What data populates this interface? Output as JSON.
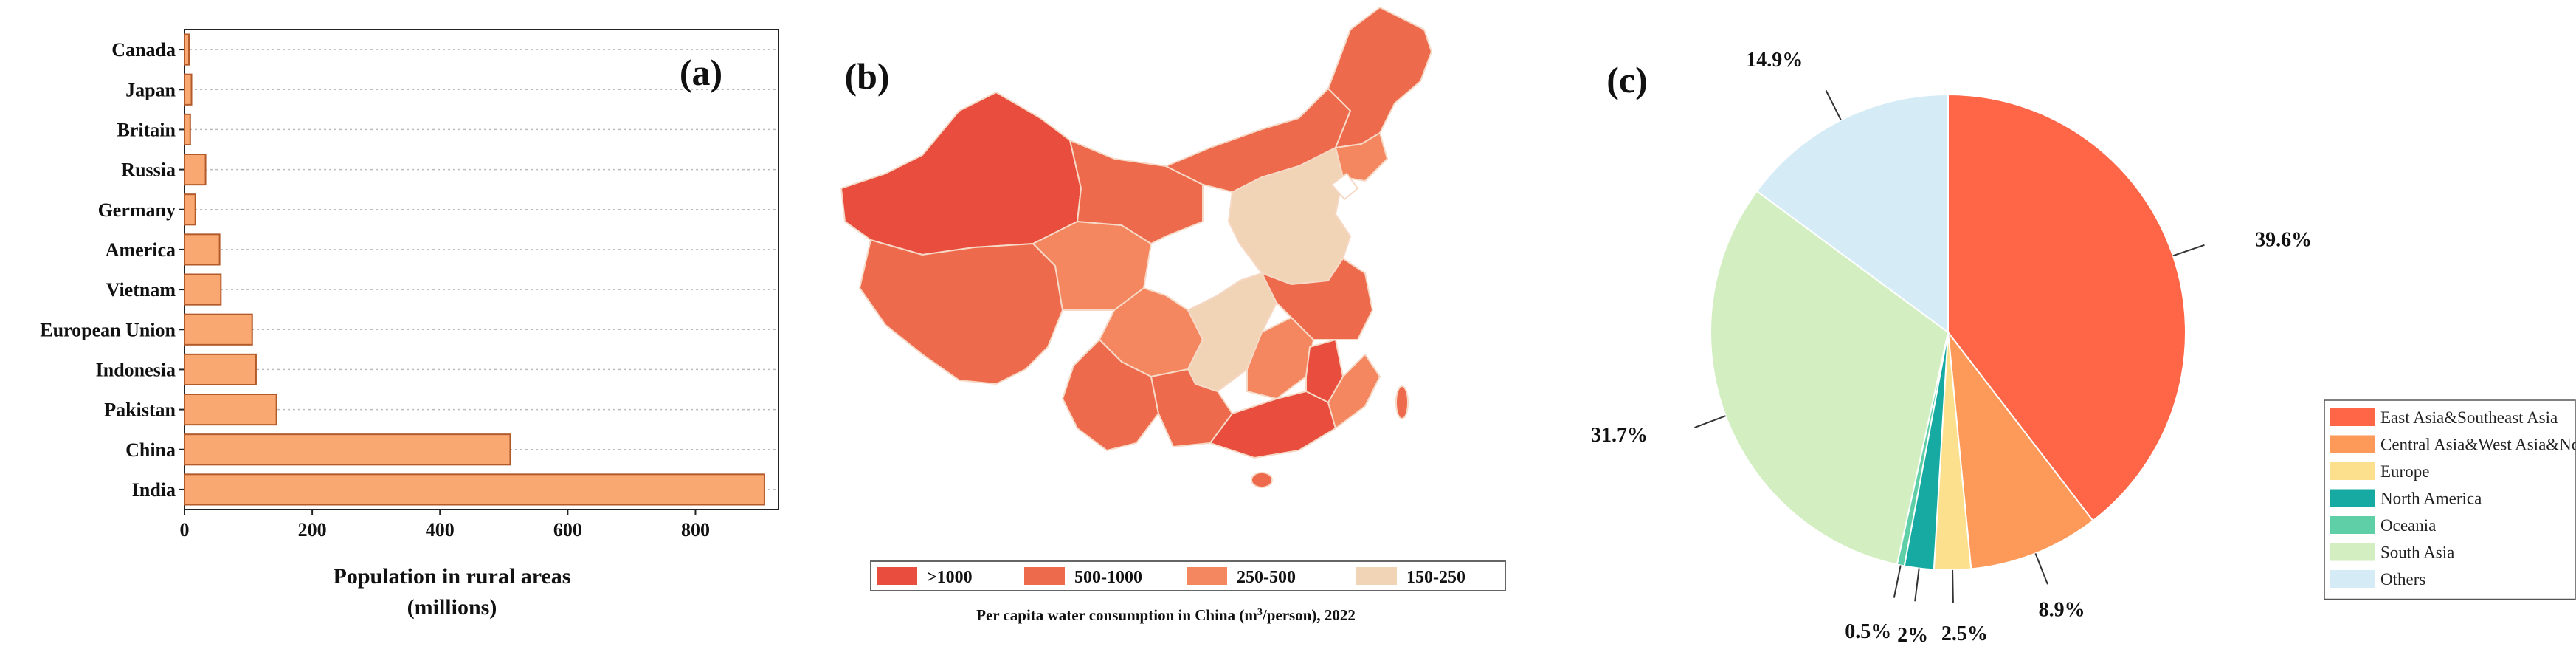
{
  "chart_data": [
    {
      "panel": "(a)",
      "type": "bar",
      "orientation": "horizontal",
      "categories": [
        "India",
        "China",
        "Pakistan",
        "Indonesia",
        "European Union",
        "Vietnam",
        "America",
        "Germany",
        "Russia",
        "Britain",
        "Japan",
        "Canada"
      ],
      "values": [
        908,
        510,
        144,
        112,
        106,
        57,
        55,
        17,
        33,
        9,
        11,
        7
      ],
      "xlabel": "Population in rural areas",
      "xlabel_line2": "(millions)",
      "xlim": [
        0,
        930
      ],
      "xticks": [
        0,
        200,
        400,
        600,
        800
      ],
      "bar_color": "#f9a872",
      "bar_edge_color": "#b25a2a",
      "grid": "horizontal dotted"
    },
    {
      "panel": "(b)",
      "type": "map",
      "legend": [
        {
          "label": ">1000",
          "color": "#e84d3d"
        },
        {
          "label": "500-1000",
          "color": "#ee6a4c"
        },
        {
          "label": "250-500",
          "color": "#f4875f"
        },
        {
          "label": "150-250",
          "color": "#f1d3b6"
        }
      ],
      "caption_pre": "Per capita water consumption in China (m",
      "caption_sup": "3",
      "caption_post": "/person), 2022"
    },
    {
      "panel": "(c)",
      "type": "pie",
      "slices": [
        {
          "name": "East Asia&Southeast Asia",
          "value": 39.6,
          "label": "39.6%",
          "color": "#fe6647"
        },
        {
          "name": "Central Asia&West Asia&North Africa",
          "value": 8.9,
          "label": "8.9%",
          "color": "#fd9a5a"
        },
        {
          "name": "Europe",
          "value": 2.5,
          "label": "2.5%",
          "color": "#fde08e"
        },
        {
          "name": "North America",
          "value": 2.0,
          "label": "2%",
          "color": "#17aaa2"
        },
        {
          "name": "Oceania",
          "value": 0.5,
          "label": "0.5%",
          "color": "#5fcfa8"
        },
        {
          "name": "South Asia",
          "value": 31.7,
          "label": "31.7%",
          "color": "#d3efc2"
        },
        {
          "name": "Others",
          "value": 14.9,
          "label": "14.9%",
          "color": "#d5ecf7"
        }
      ],
      "legend_position": "right"
    }
  ]
}
